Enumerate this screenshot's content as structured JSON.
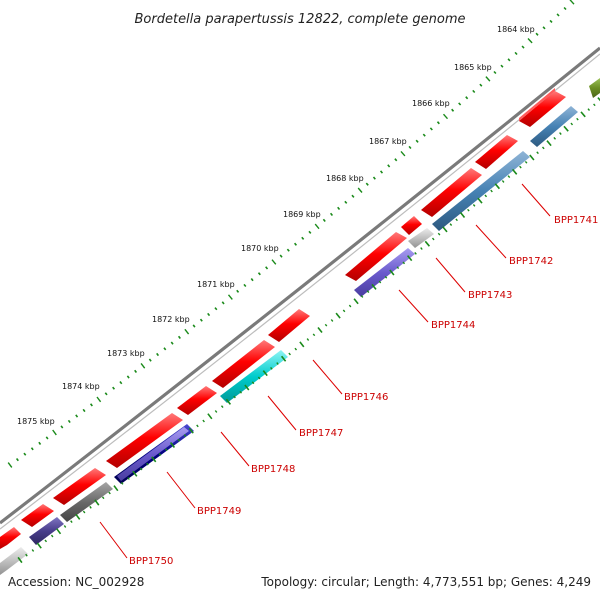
{
  "title": "Bordetella parapertussis 12822, complete genome",
  "footer": {
    "accession": "Accession: NC_002928",
    "summary": "Topology: circular; Length: 4,773,551 bp; Genes: 4,249"
  },
  "kbp_labels": [
    "1864 kbp",
    "1865 kbp",
    "1866 kbp",
    "1867 kbp",
    "1868 kbp",
    "1869 kbp",
    "1870 kbp",
    "1871 kbp",
    "1872 kbp",
    "1873 kbp",
    "1874 kbp",
    "1875 kbp"
  ],
  "gene_labels": [
    "BPP1741",
    "BPP1742",
    "BPP1743",
    "BPP1744",
    "BPP1746",
    "BPP1747",
    "BPP1748",
    "BPP1749",
    "BPP1750"
  ],
  "colors": {
    "backbone": "#777777",
    "tick_green": "#1a8a1a",
    "forward_red": "#ff0000",
    "label_red": "#cc0000",
    "steel_blue": "#4682b4",
    "slate_blue": "#6a5acd",
    "dark_slate_blue": "#483d8b",
    "navy": "#000080",
    "cyan": "#00cccc",
    "dim_gray": "#696969",
    "silver": "#c0c0c0",
    "olive": "#6b8e23"
  }
}
